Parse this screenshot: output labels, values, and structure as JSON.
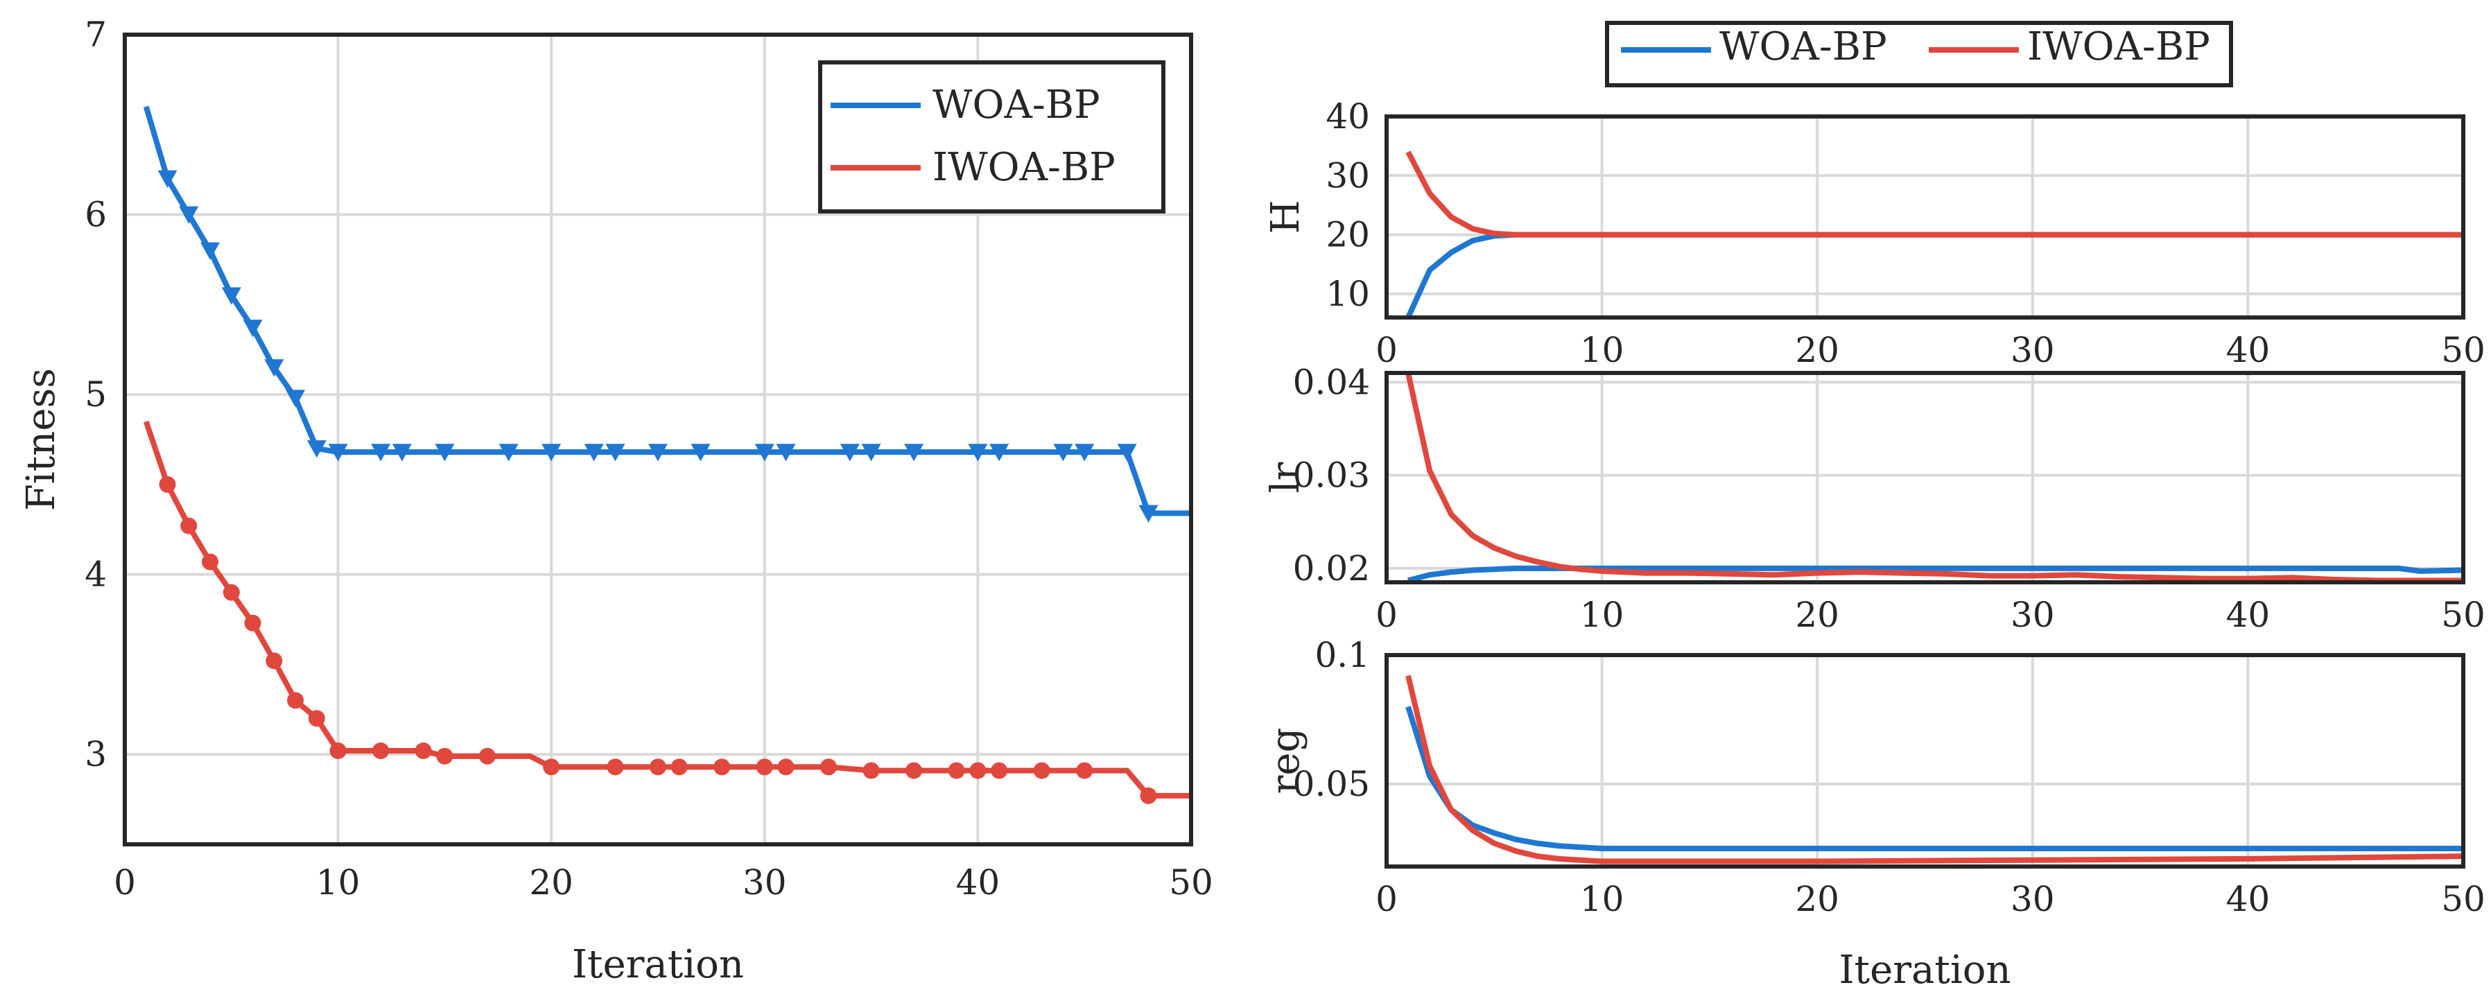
{
  "colors": {
    "woa": "#1f77d2",
    "iwoa": "#e0473d",
    "axis": "#262626",
    "grid": "#d9d9d9"
  },
  "chart_data": [
    {
      "id": "fitness",
      "type": "line",
      "title": "",
      "xlabel": "Iteration",
      "ylabel": "Fitness",
      "xlim": [
        0,
        50
      ],
      "ylim": [
        2.5,
        7
      ],
      "xticks": [
        0,
        10,
        20,
        30,
        40,
        50
      ],
      "xtick_labels": [
        "0",
        "10",
        "20",
        "30",
        "40",
        "50"
      ],
      "yticks": [
        3,
        4,
        5,
        6,
        7
      ],
      "ytick_labels": [
        "3",
        "4",
        "5",
        "6",
        "7"
      ],
      "grid": true,
      "legend": {
        "position": "top-right",
        "entries": [
          "WOA-BP",
          "IWOA-BP"
        ]
      },
      "series": [
        {
          "name": "WOA-BP",
          "color_key": "woa",
          "marker": "triangle-down",
          "x": [
            1,
            2,
            3,
            4,
            5,
            6,
            7,
            8,
            9,
            10,
            11,
            12,
            13,
            14,
            15,
            16,
            17,
            18,
            19,
            20,
            21,
            22,
            23,
            24,
            25,
            26,
            27,
            28,
            29,
            30,
            31,
            32,
            33,
            34,
            35,
            36,
            37,
            38,
            39,
            40,
            41,
            42,
            43,
            44,
            45,
            46,
            47,
            48,
            49,
            50
          ],
          "y": [
            6.6,
            6.2,
            6.0,
            5.8,
            5.55,
            5.37,
            5.15,
            4.98,
            4.7,
            4.68,
            4.68,
            4.68,
            4.68,
            4.68,
            4.68,
            4.68,
            4.68,
            4.68,
            4.68,
            4.68,
            4.68,
            4.68,
            4.68,
            4.68,
            4.68,
            4.68,
            4.68,
            4.68,
            4.68,
            4.68,
            4.68,
            4.68,
            4.68,
            4.68,
            4.68,
            4.68,
            4.68,
            4.68,
            4.68,
            4.68,
            4.68,
            4.68,
            4.68,
            4.68,
            4.68,
            4.68,
            4.68,
            4.34,
            4.34,
            4.34
          ],
          "marker_x": [
            2,
            3,
            4,
            5,
            6,
            7,
            8,
            9,
            10,
            12,
            13,
            15,
            18,
            20,
            22,
            23,
            25,
            27,
            30,
            31,
            34,
            35,
            37,
            40,
            41,
            44,
            45,
            47,
            48
          ]
        },
        {
          "name": "IWOA-BP",
          "color_key": "iwoa",
          "marker": "circle",
          "x": [
            1,
            2,
            3,
            4,
            5,
            6,
            7,
            8,
            9,
            10,
            11,
            12,
            13,
            14,
            15,
            16,
            17,
            18,
            19,
            20,
            21,
            22,
            23,
            24,
            25,
            26,
            27,
            28,
            29,
            30,
            31,
            32,
            33,
            34,
            35,
            36,
            37,
            38,
            39,
            40,
            41,
            42,
            43,
            44,
            45,
            46,
            47,
            48,
            49,
            50
          ],
          "y": [
            4.85,
            4.5,
            4.27,
            4.07,
            3.9,
            3.73,
            3.52,
            3.3,
            3.2,
            3.02,
            3.02,
            3.02,
            3.02,
            3.02,
            2.99,
            2.99,
            2.99,
            2.99,
            2.99,
            2.93,
            2.93,
            2.93,
            2.93,
            2.93,
            2.93,
            2.93,
            2.93,
            2.93,
            2.93,
            2.93,
            2.93,
            2.93,
            2.93,
            2.92,
            2.91,
            2.91,
            2.91,
            2.91,
            2.91,
            2.91,
            2.91,
            2.91,
            2.91,
            2.91,
            2.91,
            2.91,
            2.91,
            2.77,
            2.77,
            2.77
          ],
          "marker_x": [
            2,
            3,
            4,
            5,
            6,
            7,
            8,
            9,
            10,
            12,
            14,
            15,
            17,
            20,
            23,
            25,
            26,
            28,
            30,
            31,
            33,
            35,
            37,
            39,
            40,
            41,
            43,
            45,
            48
          ]
        }
      ]
    },
    {
      "id": "h",
      "type": "line",
      "xlabel": "",
      "ylabel": "H",
      "xlim": [
        0,
        50
      ],
      "ylim": [
        6,
        40
      ],
      "xticks": [
        0,
        10,
        20,
        30,
        40,
        50
      ],
      "xtick_labels": [
        "0",
        "10",
        "20",
        "30",
        "40",
        "50"
      ],
      "yticks": [
        10,
        20,
        30,
        40
      ],
      "ytick_labels": [
        "10",
        "20",
        "30",
        "40"
      ],
      "grid": true,
      "series": [
        {
          "name": "WOA-BP",
          "color_key": "woa",
          "x": [
            1,
            2,
            3,
            4,
            5,
            6,
            50
          ],
          "y": [
            6,
            14,
            17,
            19,
            19.8,
            20,
            20
          ]
        },
        {
          "name": "IWOA-BP",
          "color_key": "iwoa",
          "x": [
            1,
            2,
            3,
            4,
            5,
            6,
            50
          ],
          "y": [
            34,
            27,
            23,
            21,
            20.2,
            20,
            20
          ]
        }
      ]
    },
    {
      "id": "lr",
      "type": "line",
      "xlabel": "",
      "ylabel": "lr",
      "xlim": [
        0,
        50
      ],
      "ylim": [
        0.0185,
        0.041
      ],
      "xticks": [
        0,
        10,
        20,
        30,
        40,
        50
      ],
      "xtick_labels": [
        "0",
        "10",
        "20",
        "30",
        "40",
        "50"
      ],
      "yticks": [
        0.02,
        0.03,
        0.04
      ],
      "ytick_labels": [
        "0.02",
        "0.03",
        "0.04"
      ],
      "grid": true,
      "series": [
        {
          "name": "WOA-BP",
          "color_key": "woa",
          "x": [
            1,
            2,
            3,
            4,
            5,
            6,
            8,
            10,
            20,
            30,
            40,
            47,
            48,
            50
          ],
          "y": [
            0.0187,
            0.0193,
            0.0196,
            0.0198,
            0.0199,
            0.02,
            0.02,
            0.02,
            0.02,
            0.02,
            0.02,
            0.02,
            0.0197,
            0.0198
          ]
        },
        {
          "name": "IWOA-BP",
          "color_key": "iwoa",
          "x": [
            1,
            2,
            3,
            4,
            5,
            6,
            7,
            8,
            9,
            10,
            12,
            14,
            16,
            18,
            20,
            22,
            24,
            26,
            28,
            30,
            32,
            34,
            36,
            38,
            40,
            42,
            44,
            46,
            48,
            50
          ],
          "y": [
            0.041,
            0.0305,
            0.0258,
            0.0235,
            0.0222,
            0.0213,
            0.0207,
            0.0202,
            0.0199,
            0.0197,
            0.0195,
            0.0195,
            0.0194,
            0.0193,
            0.0195,
            0.0196,
            0.0195,
            0.0194,
            0.0192,
            0.0192,
            0.0193,
            0.0191,
            0.019,
            0.0189,
            0.0189,
            0.019,
            0.0188,
            0.0187,
            0.0187,
            0.0187
          ]
        }
      ]
    },
    {
      "id": "reg",
      "type": "line",
      "xlabel": "Iteration",
      "ylabel": "reg",
      "xlim": [
        0,
        50
      ],
      "ylim": [
        0.018,
        0.1
      ],
      "xticks": [
        0,
        10,
        20,
        30,
        40,
        50
      ],
      "xtick_labels": [
        "0",
        "10",
        "20",
        "30",
        "40",
        "50"
      ],
      "yticks": [
        0.05,
        0.1
      ],
      "ytick_labels": [
        "0.05",
        "0.1"
      ],
      "grid": true,
      "series": [
        {
          "name": "WOA-BP",
          "color_key": "woa",
          "x": [
            1,
            2,
            3,
            4,
            5,
            6,
            7,
            8,
            9,
            10,
            15,
            20,
            30,
            40,
            50
          ],
          "y": [
            0.08,
            0.053,
            0.04,
            0.034,
            0.031,
            0.0285,
            0.027,
            0.026,
            0.0255,
            0.025,
            0.025,
            0.025,
            0.025,
            0.025,
            0.025
          ]
        },
        {
          "name": "IWOA-BP",
          "color_key": "iwoa",
          "x": [
            1,
            2,
            3,
            4,
            5,
            6,
            7,
            8,
            9,
            10,
            15,
            20,
            30,
            40,
            50
          ],
          "y": [
            0.092,
            0.057,
            0.04,
            0.032,
            0.027,
            0.024,
            0.022,
            0.021,
            0.0205,
            0.02,
            0.02,
            0.02,
            0.0205,
            0.021,
            0.022
          ]
        }
      ]
    }
  ],
  "legend_top": {
    "entries": [
      "WOA-BP",
      "IWOA-BP"
    ]
  }
}
